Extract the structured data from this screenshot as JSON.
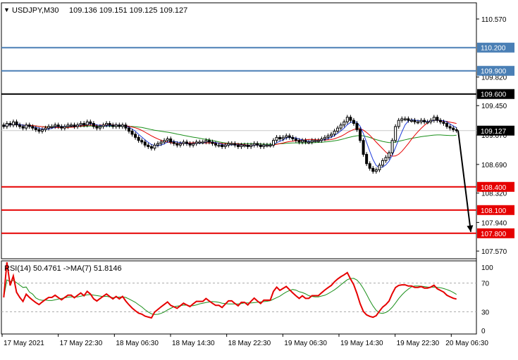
{
  "header": {
    "symbol": "USDJPY,M30",
    "ohlc": "109.136 109.151 109.125 109.127"
  },
  "rsi_header": "RSI(14) 50.4761 ->MA(7) 51.8146",
  "colors": {
    "up_level": "#4a7fb5",
    "pivot_level": "#000000",
    "down_level": "#e60000",
    "ma_fast": "#1f3cdb",
    "ma_mid": "#e60000",
    "ma_slow": "#1a8f1a",
    "rsi_line": "#e60000",
    "rsi_ma": "#1a8f1a",
    "price_tag": "#000000"
  },
  "chart_data": [
    {
      "type": "candlestick",
      "symbol": "USDJPY",
      "timeframe": "M30",
      "ylim": [
        107.48,
        110.77
      ],
      "y_ticks": [
        "110.570",
        "109.820",
        "109.450",
        "109.070",
        "108.690",
        "108.320",
        "107.940",
        "107.570"
      ],
      "x_ticks": [
        "17 May 2021",
        "17 May 22:30",
        "18 May 06:30",
        "18 May 14:30",
        "18 May 22:30",
        "19 May 06:30",
        "19 May 14:30",
        "19 May 22:30",
        "20 May 06:30"
      ],
      "current_price": "109.127",
      "levels": [
        {
          "value": 110.2,
          "label": "110.200",
          "kind": "resistance"
        },
        {
          "value": 109.9,
          "label": "109.900",
          "kind": "resistance"
        },
        {
          "value": 109.6,
          "label": "109.600",
          "kind": "pivot"
        },
        {
          "value": 108.4,
          "label": "108.400",
          "kind": "support"
        },
        {
          "value": 108.1,
          "label": "108.100",
          "kind": "support"
        },
        {
          "value": 107.8,
          "label": "107.800",
          "kind": "support"
        }
      ],
      "forecast_arrow": {
        "from": 109.13,
        "to": 107.8
      },
      "close": [
        109.18,
        109.22,
        109.2,
        109.24,
        109.2,
        109.18,
        109.16,
        109.2,
        109.18,
        109.16,
        109.14,
        109.12,
        109.14,
        109.16,
        109.18,
        109.18,
        109.2,
        109.18,
        109.16,
        109.18,
        109.2,
        109.2,
        109.18,
        109.2,
        109.22,
        109.2,
        109.24,
        109.22,
        109.18,
        109.16,
        109.18,
        109.2,
        109.22,
        109.2,
        109.18,
        109.2,
        109.18,
        109.2,
        109.16,
        109.12,
        109.08,
        109.04,
        109.0,
        108.98,
        108.94,
        108.92,
        108.9,
        108.94,
        108.96,
        108.98,
        109.0,
        109.02,
        108.98,
        108.96,
        108.94,
        108.96,
        108.98,
        108.96,
        108.94,
        108.96,
        108.98,
        108.98,
        108.98,
        109.0,
        108.98,
        108.96,
        108.94,
        108.94,
        108.92,
        108.94,
        108.96,
        108.96,
        108.94,
        108.92,
        108.94,
        108.94,
        108.92,
        108.94,
        108.96,
        108.94,
        108.92,
        108.94,
        108.94,
        108.94,
        109.0,
        109.04,
        109.02,
        109.04,
        109.06,
        109.04,
        109.02,
        109.0,
        108.98,
        109.0,
        108.98,
        108.98,
        109.0,
        109.0,
        109.0,
        109.02,
        109.04,
        109.06,
        109.08,
        109.12,
        109.16,
        109.2,
        109.24,
        109.3,
        109.26,
        109.22,
        109.14,
        109.0,
        108.82,
        108.7,
        108.64,
        108.6,
        108.62,
        108.68,
        108.74,
        108.78,
        108.84,
        109.0,
        109.18,
        109.26,
        109.28,
        109.28,
        109.26,
        109.26,
        109.24,
        109.24,
        109.26,
        109.24,
        109.24,
        109.26,
        109.3,
        109.26,
        109.24,
        109.22,
        109.18,
        109.16,
        109.14,
        109.13
      ]
    },
    {
      "type": "line",
      "indicator": "RSI(14) with MA(7)",
      "ylim": [
        0,
        100
      ],
      "y_ticks": [
        100,
        70,
        30,
        0
      ],
      "levels": [
        70,
        30
      ]
    }
  ]
}
